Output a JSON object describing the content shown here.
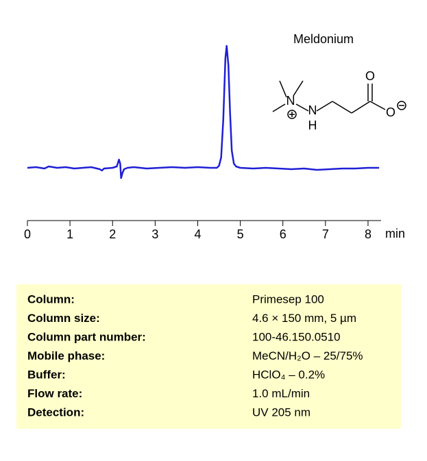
{
  "chart_data": {
    "type": "line",
    "title": "Meldonium",
    "x": [
      0,
      0.2,
      0.4,
      0.5,
      0.7,
      0.9,
      1.1,
      1.3,
      1.5,
      1.7,
      1.75,
      1.8,
      2.0,
      2.1,
      2.15,
      2.18,
      2.2,
      2.23,
      2.27,
      2.35,
      2.5,
      2.8,
      3.1,
      3.4,
      3.7,
      4.0,
      4.3,
      4.45,
      4.5,
      4.55,
      4.6,
      4.65,
      4.68,
      4.72,
      4.76,
      4.8,
      4.85,
      4.9,
      5.0,
      5.3,
      5.6,
      5.9,
      6.2,
      6.5,
      6.8,
      7.1,
      7.4,
      7.7,
      8.0,
      8.26
    ],
    "values": [
      0,
      1,
      -1,
      2,
      0,
      1,
      -1,
      0,
      1,
      -2,
      -4,
      -1,
      0,
      2,
      12,
      6,
      -15,
      -8,
      -2,
      0,
      1,
      -1,
      0,
      1,
      0,
      1,
      0,
      0,
      3,
      15,
      70,
      160,
      178,
      150,
      80,
      25,
      6,
      2,
      0,
      -1,
      0,
      -1,
      -2,
      -1,
      -3,
      -2,
      -1,
      -1,
      0,
      0
    ],
    "color": "#1f1fd6",
    "xlim": [
      0,
      8.3
    ],
    "xticks": [
      0,
      1,
      2,
      3,
      4,
      5,
      6,
      7,
      8
    ],
    "x_label": "min",
    "ylim": [
      -77,
      185
    ]
  },
  "structure": {
    "atoms": [
      "N",
      "N",
      "H",
      "O",
      "O"
    ]
  },
  "conditions": {
    "rows": [
      [
        "Column:",
        "Primesep  100"
      ],
      [
        "Column size:",
        "4.6 × 150 mm, 5 µm"
      ],
      [
        "Column part number:",
        "100-46.150.0510"
      ],
      [
        "Mobile phase:",
        "MeCN/H₂O – 25/75%"
      ],
      [
        "Buffer:",
        "HClO₄  – 0.2%"
      ],
      [
        "Flow rate:",
        "1.0 mL/min"
      ],
      [
        "Detection:",
        "UV 205  nm"
      ]
    ]
  }
}
